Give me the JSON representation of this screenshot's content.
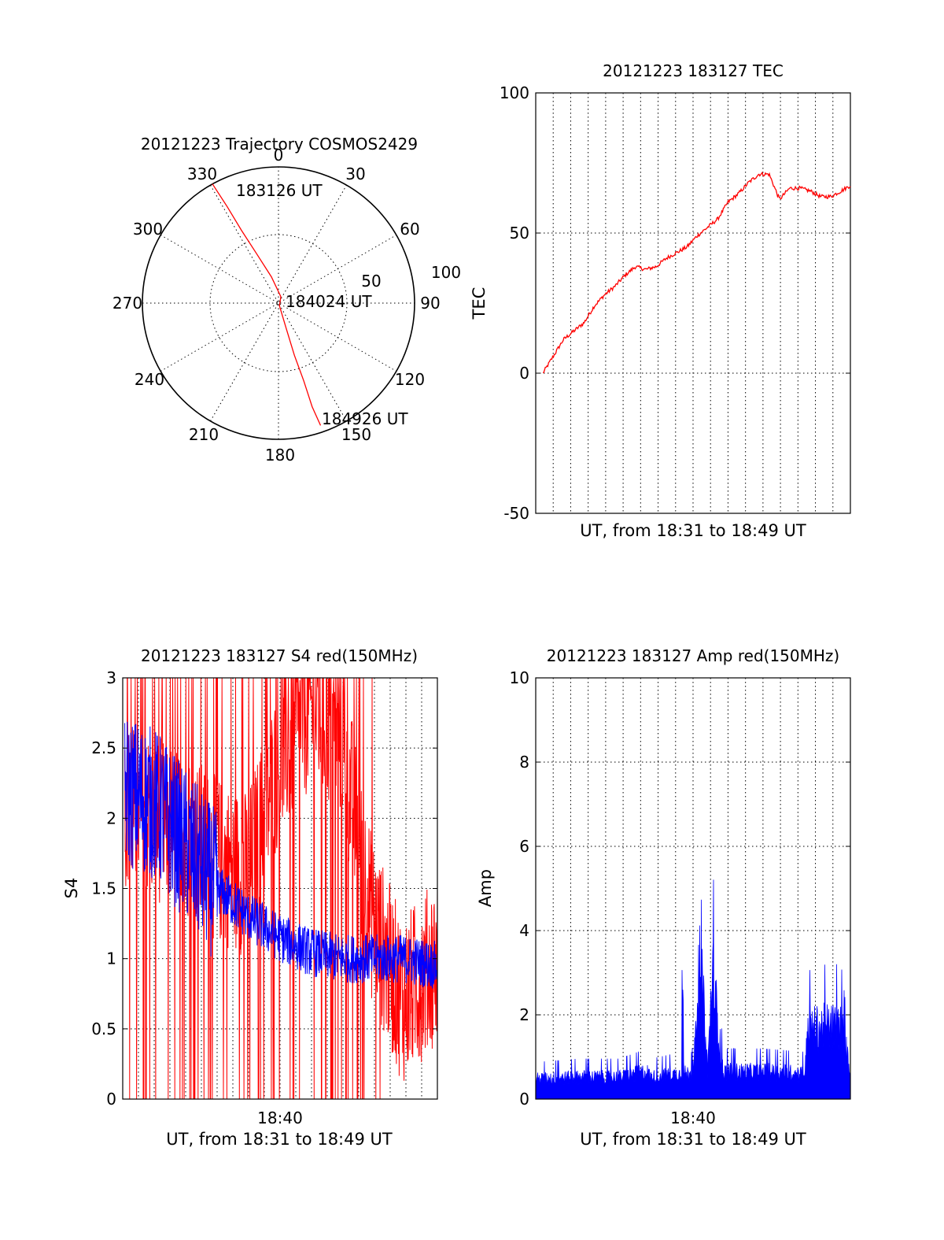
{
  "colors": {
    "red": "#ff0000",
    "blue": "#0000ff",
    "axes": "#000000"
  },
  "chart_data": [
    {
      "id": "trajectory",
      "type": "polar",
      "title": "20121223 Trajectory COSMOS2429",
      "angle_labels": [
        "0",
        "30",
        "60",
        "90",
        "120",
        "150",
        "180",
        "210",
        "240",
        "270",
        "300",
        "330"
      ],
      "radial_labels": [
        "50",
        "100"
      ],
      "series": [
        {
          "color": "red",
          "points": [
            {
              "azimuth": 331,
              "distance": 100
            },
            {
              "azimuth": 332,
              "distance": 80
            },
            {
              "azimuth": 333,
              "distance": 60
            },
            {
              "azimuth": 336,
              "distance": 40
            },
            {
              "azimuth": 345,
              "distance": 20
            },
            {
              "azimuth": 20,
              "distance": 5
            },
            {
              "azimuth": 160,
              "distance": 2
            },
            {
              "azimuth": 163,
              "distance": 20
            },
            {
              "azimuth": 163,
              "distance": 40
            },
            {
              "azimuth": 162,
              "distance": 60
            },
            {
              "azimuth": 162,
              "distance": 80
            },
            {
              "azimuth": 161,
              "distance": 95
            }
          ]
        }
      ],
      "annotations": [
        "183126 UT",
        "184024 UT",
        "184926 UT"
      ]
    },
    {
      "id": "tec",
      "type": "line",
      "title": "20121223 183127 TEC",
      "xlabel": "UT, from 18:31 to 18:49 UT",
      "ylabel": "TEC",
      "xlim": [
        18.518,
        18.824
      ],
      "ylim": [
        -50,
        100
      ],
      "yticks": [
        "100",
        "50",
        "0",
        "-50"
      ],
      "grid": true,
      "series": [
        {
          "color": "red",
          "x": [
            18.525,
            18.535,
            18.545,
            18.555,
            18.565,
            18.575,
            18.585,
            18.595,
            18.605,
            18.615,
            18.625,
            18.635,
            18.645,
            18.655,
            18.665,
            18.675,
            18.685,
            18.695,
            18.705,
            18.715,
            18.725,
            18.735,
            18.745,
            18.755,
            18.765,
            18.775,
            18.785,
            18.795,
            18.805,
            18.815,
            18.824
          ],
          "values": [
            0,
            6,
            12,
            15,
            18,
            24,
            28,
            31,
            35,
            38,
            37,
            38,
            41,
            43,
            45,
            49,
            52,
            55,
            61,
            64,
            68,
            71,
            71,
            62,
            66,
            66,
            65,
            63,
            63,
            65,
            67
          ]
        }
      ]
    },
    {
      "id": "s4",
      "type": "line",
      "title": "20121223 183127 S4 red(150MHz)",
      "xlabel": "UT, from 18:31 to 18:49 UT",
      "ylabel": "S4",
      "xtick_label": "18:40",
      "xlim": [
        18.518,
        18.824
      ],
      "ylim": [
        0,
        3
      ],
      "yticks": [
        "3",
        "2.5",
        "2",
        "1.5",
        "1",
        "0.5",
        "0"
      ],
      "grid": true,
      "series": [
        {
          "color": "red",
          "x": [
            18.52,
            18.55,
            18.58,
            18.61,
            18.64,
            18.67,
            18.7,
            18.73,
            18.76,
            18.79,
            18.824
          ],
          "values": [
            2.1,
            2.0,
            1.9,
            1.7,
            1.6,
            2.4,
            2.8,
            2.6,
            1.3,
            0.7,
            1.0
          ]
        },
        {
          "color": "blue",
          "x": [
            18.52,
            18.55,
            18.58,
            18.61,
            18.64,
            18.67,
            18.7,
            18.73,
            18.76,
            18.79,
            18.824
          ],
          "values": [
            2.2,
            2.1,
            1.8,
            1.5,
            1.3,
            1.15,
            1.05,
            1.0,
            1.0,
            1.0,
            0.95
          ]
        }
      ]
    },
    {
      "id": "amp",
      "type": "area",
      "title": "20121223 183127 Amp red(150MHz)",
      "xlabel": "UT, from 18:31 to 18:49 UT",
      "ylabel": "Amp",
      "xtick_label": "18:40",
      "xlim": [
        18.518,
        18.824
      ],
      "ylim": [
        0,
        10
      ],
      "yticks": [
        "10",
        "8",
        "6",
        "4",
        "2",
        "0"
      ],
      "grid": true,
      "series": [
        {
          "color": "blue",
          "x": [
            18.518,
            18.56,
            18.6,
            18.626,
            18.63,
            18.66,
            18.66,
            18.662,
            18.67,
            18.68,
            18.685,
            18.69,
            18.7,
            18.74,
            18.78,
            18.782,
            18.8,
            18.815,
            18.824
          ],
          "values": [
            0.55,
            0.6,
            0.6,
            0.75,
            0.6,
            0.7,
            5.9,
            0.7,
            0.7,
            3.2,
            0.8,
            3.5,
            0.75,
            0.75,
            0.7,
            1.9,
            2.0,
            2.0,
            0.8
          ]
        }
      ]
    }
  ]
}
